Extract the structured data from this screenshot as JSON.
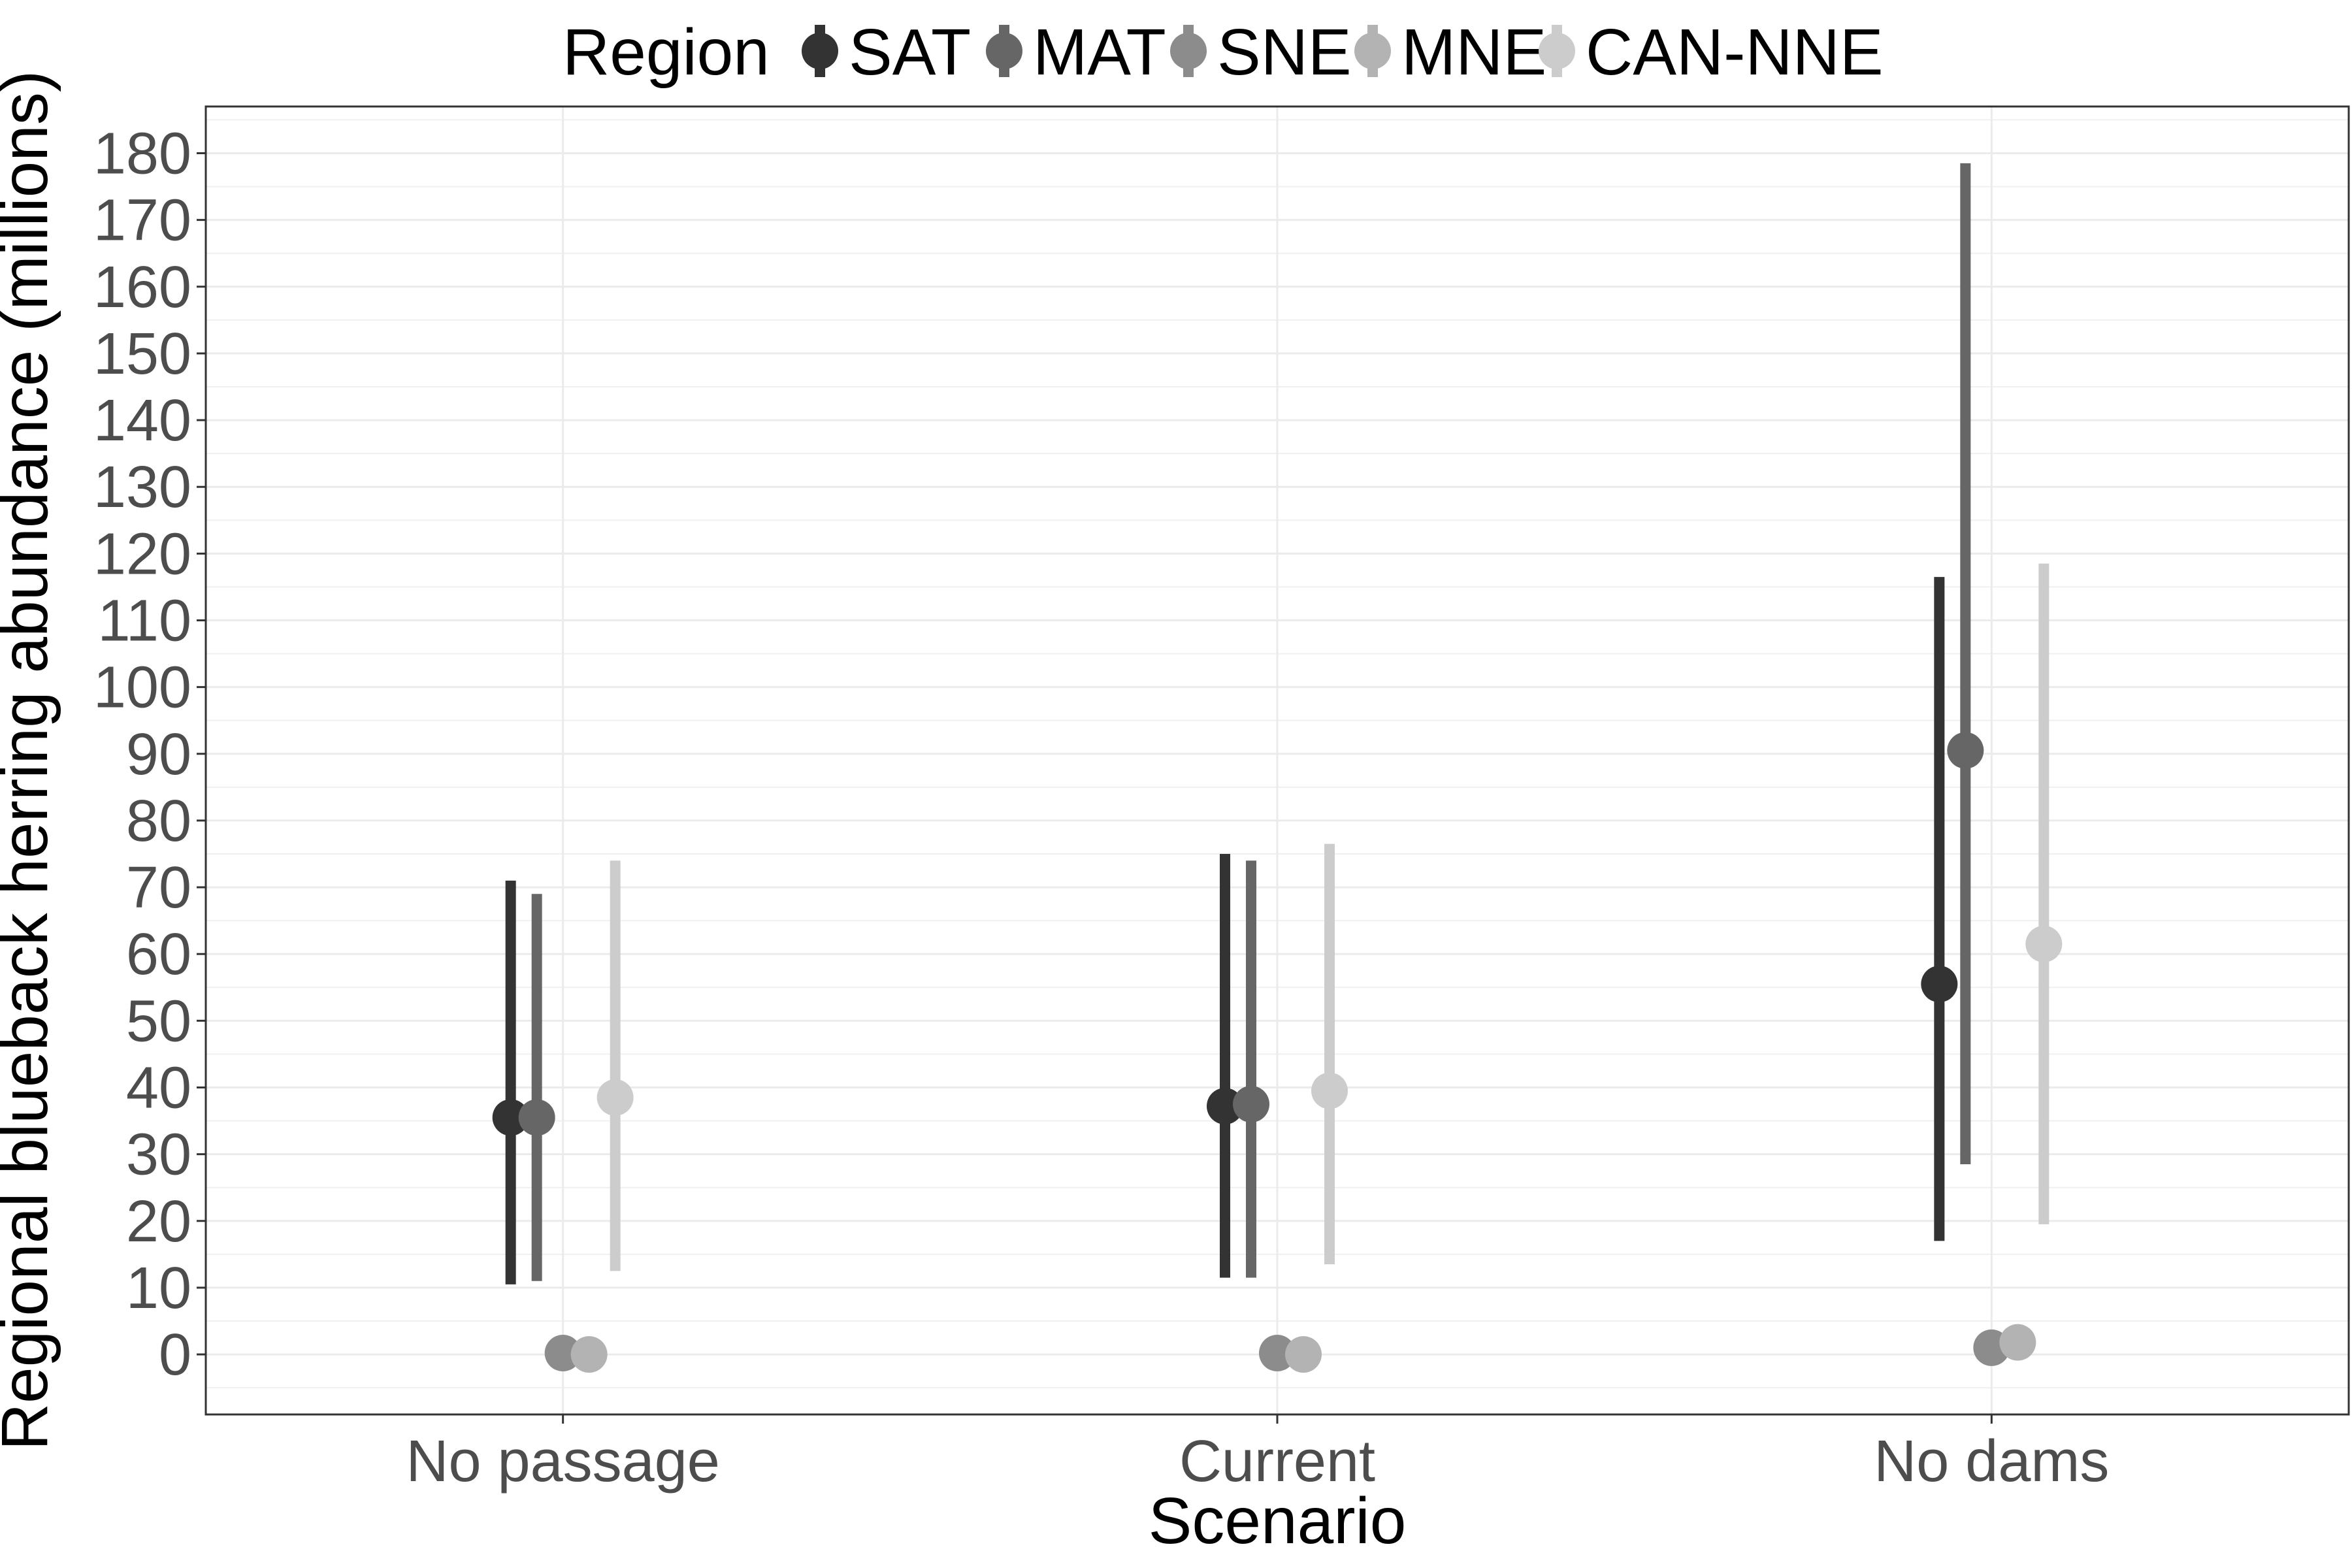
{
  "chart_data": {
    "type": "scatter",
    "subtype": "point-range",
    "xlabel": "Scenario",
    "ylabel": "Regional blueback herring abundance (millions)",
    "categories": [
      "No passage",
      "Current",
      "No dams"
    ],
    "ylim": [
      -9,
      187
    ],
    "yticks": [
      0,
      10,
      20,
      30,
      40,
      50,
      60,
      70,
      80,
      90,
      100,
      110,
      120,
      130,
      140,
      150,
      160,
      170,
      180
    ],
    "grid": true,
    "legend": {
      "title": "Region",
      "placement": "top"
    },
    "series": [
      {
        "name": "SAT",
        "color": "#333333",
        "mean": [
          35.5,
          37.2,
          55.5
        ],
        "lower": [
          10.5,
          11.5,
          17.0
        ],
        "upper": [
          71.0,
          75.0,
          116.5
        ]
      },
      {
        "name": "MAT",
        "color": "#666666",
        "mean": [
          35.5,
          37.5,
          90.5
        ],
        "lower": [
          11.0,
          11.5,
          28.5
        ],
        "upper": [
          69.0,
          74.0,
          178.5
        ]
      },
      {
        "name": "SNE",
        "color": "#8c8c8c",
        "mean": [
          0.2,
          0.2,
          1.0
        ],
        "lower": [
          0.0,
          0.0,
          0.5
        ],
        "upper": [
          0.5,
          0.5,
          1.5
        ]
      },
      {
        "name": "MNE",
        "color": "#b3b3b3",
        "mean": [
          0.0,
          0.0,
          1.8
        ],
        "lower": [
          0.0,
          0.0,
          1.0
        ],
        "upper": [
          0.3,
          0.3,
          2.5
        ]
      },
      {
        "name": "CAN-NNE",
        "color": "#cccccc",
        "mean": [
          38.5,
          39.5,
          61.5
        ],
        "lower": [
          12.5,
          13.5,
          19.5
        ],
        "upper": [
          74.0,
          76.5,
          118.5
        ]
      }
    ]
  }
}
